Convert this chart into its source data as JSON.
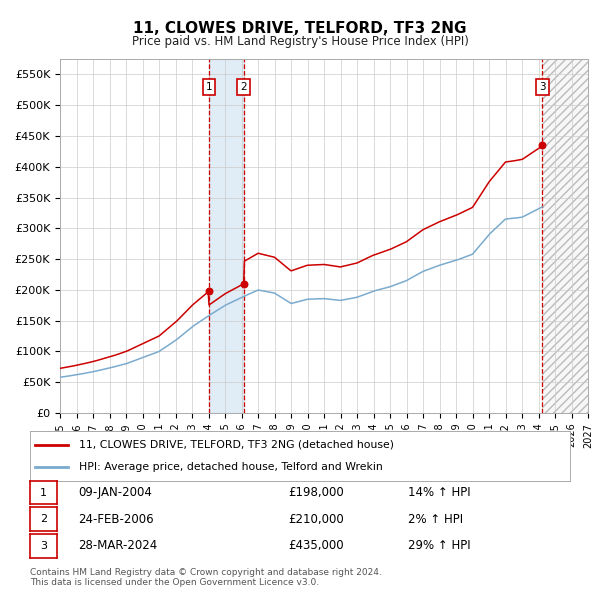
{
  "title": "11, CLOWES DRIVE, TELFORD, TF3 2NG",
  "subtitle": "Price paid vs. HM Land Registry's House Price Index (HPI)",
  "legend_label_red": "11, CLOWES DRIVE, TELFORD, TF3 2NG (detached house)",
  "legend_label_blue": "HPI: Average price, detached house, Telford and Wrekin",
  "footer": "Contains HM Land Registry data © Crown copyright and database right 2024.\nThis data is licensed under the Open Government Licence v3.0.",
  "ylim": [
    0,
    575000
  ],
  "yticks": [
    0,
    50000,
    100000,
    150000,
    200000,
    250000,
    300000,
    350000,
    400000,
    450000,
    500000,
    550000
  ],
  "ytick_labels": [
    "£0",
    "£50K",
    "£100K",
    "£150K",
    "£200K",
    "£250K",
    "£300K",
    "£350K",
    "£400K",
    "£450K",
    "£500K",
    "£550K"
  ],
  "sale_points": [
    {
      "label": "1",
      "date": "09-JAN-2004",
      "price": 198000,
      "hpi_pct": "14%",
      "x": 2004.03
    },
    {
      "label": "2",
      "date": "24-FEB-2006",
      "price": 210000,
      "hpi_pct": "2%",
      "x": 2006.13
    },
    {
      "label": "3",
      "date": "28-MAR-2024",
      "price": 435000,
      "hpi_pct": "29%",
      "x": 2024.24
    }
  ],
  "xmin": 1995,
  "xmax": 2027,
  "red_color": "#cc0000",
  "blue_color": "#7aabce",
  "grid_color": "#cccccc",
  "bg_color": "#ffffff"
}
